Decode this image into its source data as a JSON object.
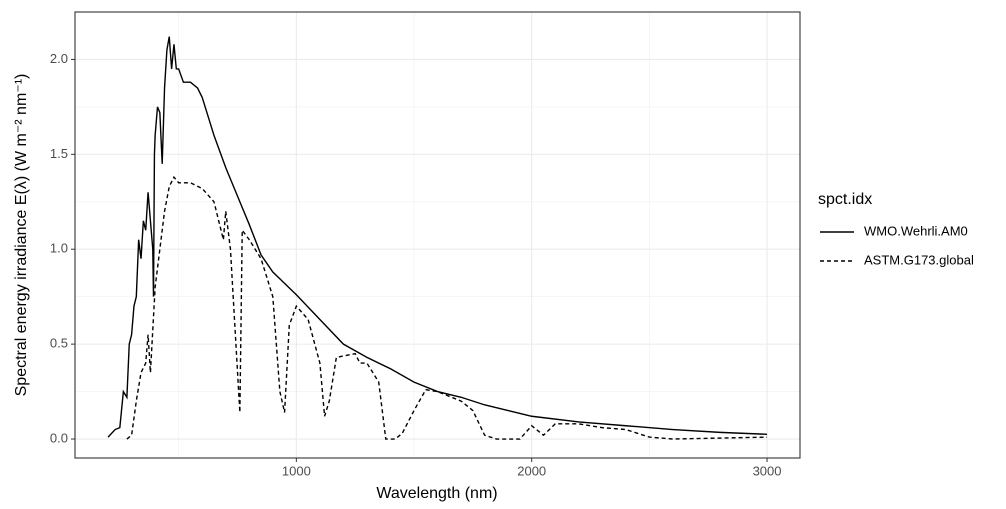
{
  "chart_data": {
    "type": "line",
    "x_label": "Wavelength (nm)",
    "y_label": "Spectral energy irradiance E(λ) (W m⁻² nm⁻¹)",
    "legend_title": "spct.idx",
    "legend_position": "right",
    "grid": true,
    "xlim": [
      59.5,
      3140
    ],
    "ylim": [
      -0.1,
      2.25
    ],
    "xticks": [
      1000,
      2000,
      3000
    ],
    "yticks": [
      {
        "value": 0,
        "label": "0.0"
      },
      0.5,
      {
        "value": 1,
        "label": "1.0"
      },
      1.5,
      {
        "value": 2,
        "label": "2.0"
      }
    ],
    "x_minor_ticks": [
      500,
      1500,
      2500
    ],
    "y_minor_ticks": [
      0.25,
      0.75,
      1.25,
      1.75
    ],
    "series": [
      {
        "name": "WMO.Wehrli.AM0",
        "color": "#000000",
        "linetype": "solid",
        "x": [
          200,
          230,
          250,
          265,
          280,
          290,
          300,
          310,
          320,
          330,
          340,
          350,
          360,
          370,
          380,
          390,
          393,
          397,
          400,
          410,
          420,
          430,
          440,
          450,
          460,
          470,
          480,
          490,
          500,
          520,
          550,
          580,
          600,
          650,
          700,
          750,
          800,
          850,
          900,
          950,
          1000,
          1100,
          1200,
          1300,
          1400,
          1500,
          1600,
          1700,
          1800,
          1900,
          2000,
          2200,
          2400,
          2600,
          2800,
          3000
        ],
        "values": [
          0.01,
          0.05,
          0.06,
          0.25,
          0.22,
          0.5,
          0.55,
          0.7,
          0.75,
          1.05,
          0.95,
          1.15,
          1.1,
          1.3,
          1.15,
          1.0,
          0.75,
          1.5,
          1.6,
          1.75,
          1.72,
          1.45,
          1.85,
          2.05,
          2.12,
          1.95,
          2.08,
          1.95,
          1.95,
          1.88,
          1.88,
          1.85,
          1.8,
          1.6,
          1.43,
          1.28,
          1.13,
          0.97,
          0.88,
          0.82,
          0.76,
          0.63,
          0.5,
          0.43,
          0.37,
          0.3,
          0.25,
          0.22,
          0.18,
          0.15,
          0.12,
          0.09,
          0.07,
          0.05,
          0.035,
          0.025
        ]
      },
      {
        "name": "ASTM.G173.global",
        "color": "#000000",
        "linetype": "dashed",
        "x": [
          280,
          300,
          320,
          340,
          360,
          370,
          380,
          400,
          420,
          440,
          460,
          480,
          500,
          550,
          600,
          650,
          690,
          700,
          720,
          760,
          770,
          800,
          850,
          900,
          930,
          950,
          970,
          1000,
          1050,
          1100,
          1120,
          1140,
          1170,
          1250,
          1270,
          1300,
          1350,
          1380,
          1420,
          1450,
          1500,
          1550,
          1600,
          1700,
          1750,
          1800,
          1850,
          1950,
          2000,
          2050,
          2100,
          2200,
          2300,
          2400,
          2500,
          2600,
          3000
        ],
        "values": [
          0,
          0.02,
          0.2,
          0.35,
          0.4,
          0.55,
          0.35,
          0.8,
          1.0,
          1.2,
          1.33,
          1.38,
          1.35,
          1.35,
          1.32,
          1.25,
          1.05,
          1.2,
          1.0,
          0.14,
          1.1,
          1.05,
          0.95,
          0.75,
          0.25,
          0.14,
          0.6,
          0.7,
          0.63,
          0.4,
          0.12,
          0.2,
          0.43,
          0.45,
          0.4,
          0.4,
          0.3,
          0,
          0,
          0.03,
          0.15,
          0.26,
          0.25,
          0.2,
          0.15,
          0.02,
          0,
          0,
          0.07,
          0.02,
          0.08,
          0.08,
          0.06,
          0.05,
          0.01,
          0,
          0.01
        ]
      }
    ]
  }
}
